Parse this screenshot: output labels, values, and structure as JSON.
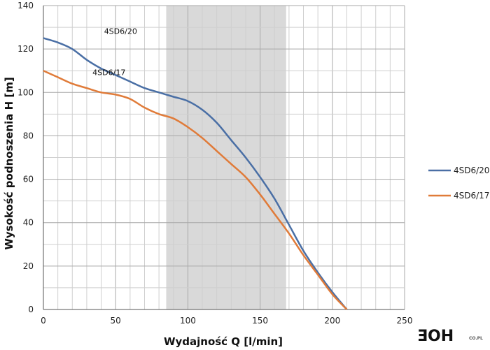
{
  "chart_data": {
    "type": "line",
    "xlabel": "Wydajność Q [l/min]",
    "ylabel": "Wysokość podnoszenia H [m]",
    "xlim": [
      0,
      250
    ],
    "ylim": [
      0,
      140
    ],
    "xticks": [
      0,
      50,
      100,
      150,
      200,
      250
    ],
    "yticks": [
      0,
      20,
      40,
      60,
      80,
      100,
      120,
      140
    ],
    "x_minor_step": 10,
    "y_minor_step": 10,
    "grid": true,
    "shaded_band": {
      "x_from": 85,
      "x_to": 168,
      "color": "#d9d9d9"
    },
    "legend_position": "right",
    "series": [
      {
        "name": "4SD6/20",
        "color": "#4a6fa5",
        "label_at": {
          "x": 42,
          "y": 127
        },
        "x": [
          0,
          10,
          20,
          30,
          40,
          50,
          60,
          70,
          80,
          90,
          100,
          110,
          120,
          130,
          140,
          150,
          160,
          170,
          180,
          190,
          200,
          210
        ],
        "y": [
          125,
          123,
          120,
          115,
          111,
          108,
          105,
          102,
          100,
          98,
          96,
          92,
          86,
          78,
          70,
          61,
          51,
          39,
          27,
          17,
          8,
          0
        ]
      },
      {
        "name": "4SD6/17",
        "color": "#e07b39",
        "label_at": {
          "x": 34,
          "y": 108
        },
        "x": [
          0,
          10,
          20,
          30,
          40,
          50,
          60,
          70,
          80,
          90,
          100,
          110,
          120,
          130,
          140,
          150,
          160,
          170,
          180,
          190,
          200,
          210
        ],
        "y": [
          110,
          107,
          104,
          102,
          100,
          99,
          97,
          93,
          90,
          88,
          84,
          79,
          73,
          67,
          61,
          53,
          44,
          35,
          25,
          16,
          7,
          0
        ]
      }
    ]
  },
  "brand": {
    "logo_text": "ƎOH",
    "logo_small": "CO.PL"
  }
}
